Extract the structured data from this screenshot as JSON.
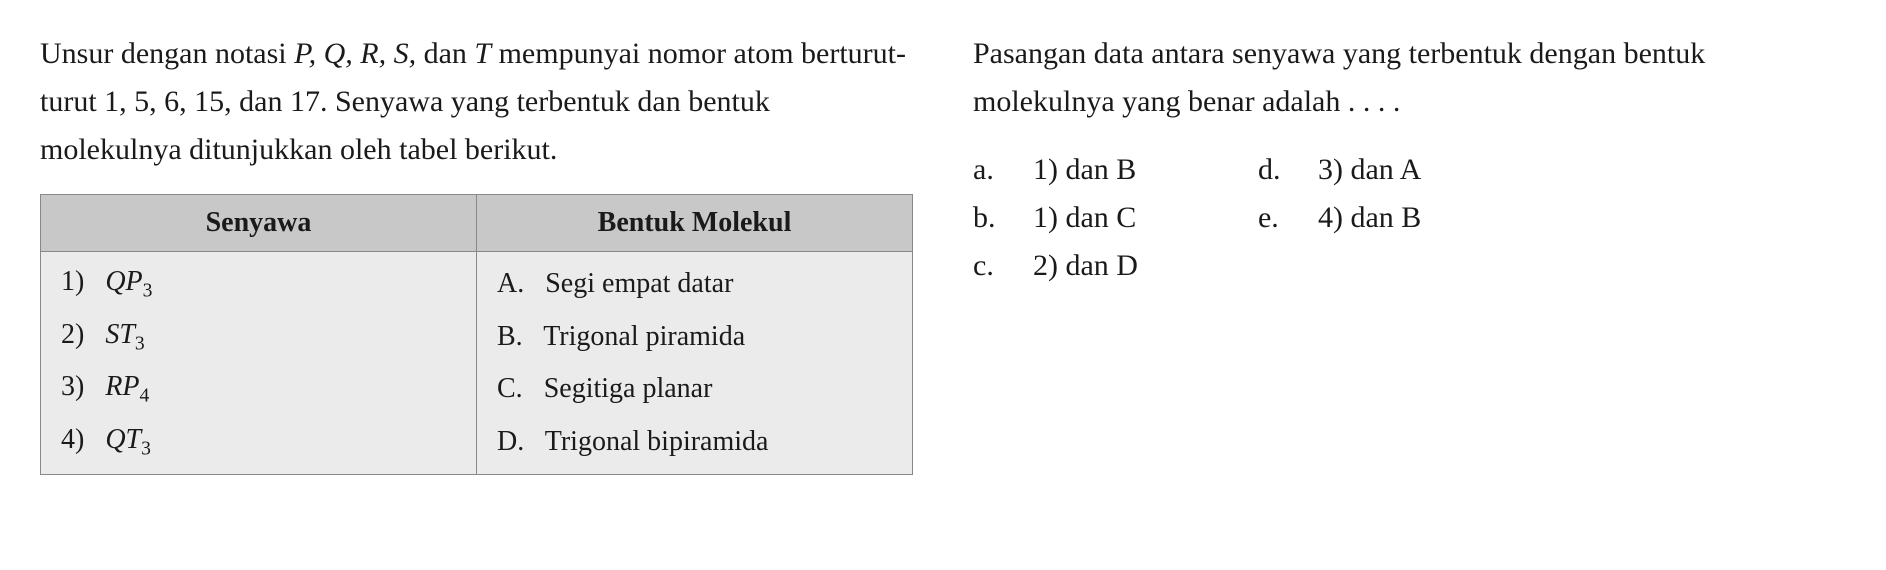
{
  "left": {
    "question_p1": "Unsur dengan notasi ",
    "question_vars": "P, Q, R, S,",
    "question_p2": " dan ",
    "question_var_t": "T",
    "question_p3": " mempunyai nomor atom berturut-turut 1, 5, 6, 15, dan 17. Senyawa yang terbentuk dan bentuk molekulnya ditunjukkan oleh tabel berikut.",
    "table": {
      "header_senyawa": "Senyawa",
      "header_bentuk": "Bentuk Molekul",
      "rows": [
        {
          "num": "1)",
          "compound_base": "QP",
          "compound_sub": "3",
          "letter": "A.",
          "shape": "Segi empat datar"
        },
        {
          "num": "2)",
          "compound_base": "ST",
          "compound_sub": "3",
          "letter": "B.",
          "shape": "Trigonal piramida"
        },
        {
          "num": "3)",
          "compound_base": "RP",
          "compound_sub": "4",
          "letter": "C.",
          "shape": "Segitiga planar"
        },
        {
          "num": "4)",
          "compound_base": "QT",
          "compound_sub": "3",
          "letter": "D.",
          "shape": "Trigonal bipiramida"
        }
      ]
    }
  },
  "right": {
    "question": "Pasangan data antara senyawa yang terbentuk dengan bentuk molekulnya yang benar adalah . . . .",
    "options_left": [
      {
        "letter": "a.",
        "text": "1) dan B"
      },
      {
        "letter": "b.",
        "text": "1) dan C"
      },
      {
        "letter": "c.",
        "text": "2) dan D"
      }
    ],
    "options_right": [
      {
        "letter": "d.",
        "text": "3) dan A"
      },
      {
        "letter": "e.",
        "text": "4) dan B"
      }
    ]
  },
  "colors": {
    "text": "#1a1a1a",
    "table_header_bg": "#c8c8c8",
    "table_cell_bg": "#ebebeb",
    "table_border": "#888888",
    "background": "#ffffff"
  },
  "typography": {
    "body_fontsize": 30,
    "table_fontsize": 28,
    "font_family": "Georgia, Times New Roman, serif"
  }
}
